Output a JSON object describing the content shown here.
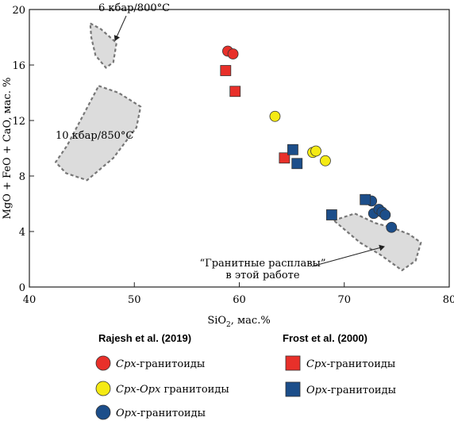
{
  "chart_data": {
    "type": "scatter",
    "xlabel": "SiO2, мас.%",
    "xlabel_main": "SiO",
    "xlabel_sub": "2",
    "xlabel_rest": ", мас.%",
    "ylabel": "MgO + FeO + CaO, мас. %",
    "xlim": [
      40,
      80
    ],
    "ylim": [
      0,
      20
    ],
    "xticks": [
      "40",
      "50",
      "60",
      "70",
      "80"
    ],
    "yticks": [
      "0",
      "4",
      "8",
      "12",
      "16",
      "20"
    ],
    "xtick_values": [
      40,
      50,
      60,
      70,
      80
    ],
    "ytick_values": [
      0,
      4,
      8,
      12,
      16,
      20
    ],
    "fields": [
      {
        "label": "6 кбар/800°C",
        "polygon": [
          [
            45.8,
            19.0
          ],
          [
            46.8,
            18.6
          ],
          [
            48.3,
            17.6
          ],
          [
            48.0,
            16.2
          ],
          [
            47.3,
            15.8
          ],
          [
            46.3,
            16.7
          ],
          [
            45.9,
            18.0
          ]
        ]
      },
      {
        "label": "10 кбар/850°C",
        "polygon": [
          [
            46.6,
            14.5
          ],
          [
            48.5,
            14.0
          ],
          [
            50.6,
            13.0
          ],
          [
            50.2,
            11.5
          ],
          [
            48.0,
            9.3
          ],
          [
            45.5,
            7.7
          ],
          [
            43.5,
            8.2
          ],
          [
            42.5,
            9.0
          ],
          [
            43.6,
            10.2
          ],
          [
            45.0,
            12.2
          ]
        ]
      },
      {
        "label": "“Гранитные расплавы” в этой работе",
        "label_line1": "“Гранитные расплавы”",
        "label_line2": "в этой работе",
        "polygon": [
          [
            69.0,
            4.8
          ],
          [
            71.0,
            5.3
          ],
          [
            73.0,
            4.6
          ],
          [
            74.5,
            4.3
          ],
          [
            76.2,
            3.8
          ],
          [
            77.3,
            3.2
          ],
          [
            76.8,
            1.9
          ],
          [
            75.5,
            1.2
          ],
          [
            73.5,
            2.3
          ],
          [
            71.5,
            3.2
          ]
        ]
      }
    ],
    "series": [
      {
        "name": "Срх-гранитоиды",
        "name_italic": "Срх",
        "name_rest": "-гранитоиды",
        "group": "Rajesh et al. (2019)",
        "marker": "circle",
        "color": "#e8302a",
        "points": [
          [
            58.9,
            17.0
          ],
          [
            59.4,
            16.8
          ]
        ]
      },
      {
        "name": "Срх-Орх гранитоиды",
        "name_italic": "Срх-Орх",
        "name_rest": " гранитоиды",
        "group": "Rajesh et al. (2019)",
        "marker": "circle",
        "color": "#f5ea14",
        "points": [
          [
            63.4,
            12.3
          ],
          [
            67.0,
            9.7
          ],
          [
            67.3,
            9.8
          ],
          [
            68.2,
            9.1
          ]
        ]
      },
      {
        "name": "Орх-гранитоиды",
        "name_italic": "Орх",
        "name_rest": "-гранитоиды",
        "group": "Rajesh et al. (2019)",
        "marker": "circle",
        "color": "#1c4e8a",
        "points": [
          [
            72.1,
            6.3
          ],
          [
            72.6,
            6.2
          ],
          [
            72.8,
            5.3
          ],
          [
            73.3,
            5.6
          ],
          [
            73.6,
            5.4
          ],
          [
            73.9,
            5.2
          ],
          [
            74.5,
            4.3
          ]
        ]
      },
      {
        "name": "Срх-гранитоиды",
        "name_italic": "Срх",
        "name_rest": "-гранитоиды",
        "group": "Frost et al. (2000)",
        "marker": "square",
        "color": "#e8302a",
        "points": [
          [
            58.7,
            15.6
          ],
          [
            59.6,
            14.1
          ],
          [
            64.3,
            9.3
          ]
        ]
      },
      {
        "name": "Орх-гранитоиды",
        "name_italic": "Орх",
        "name_rest": "-гранитоиды",
        "group": "Frost et al. (2000)",
        "marker": "square",
        "color": "#1c4e8a",
        "points": [
          [
            65.1,
            9.9
          ],
          [
            65.5,
            8.9
          ],
          [
            68.8,
            5.2
          ],
          [
            72.0,
            6.3
          ]
        ]
      }
    ],
    "legend": {
      "placement": "bottom",
      "groups": [
        {
          "title": "Rajesh et al. (2019)",
          "series_index": [
            0,
            1,
            2
          ]
        },
        {
          "title": "Frost et al. (2000)",
          "series_index": [
            3,
            4
          ]
        }
      ]
    },
    "colors": {
      "field_fill": "#dcdcdc",
      "field_stroke": "#777777",
      "axis": "#222222",
      "marker_stroke": "#333333",
      "blue_in_field_fill": "#6e7ea0"
    }
  }
}
